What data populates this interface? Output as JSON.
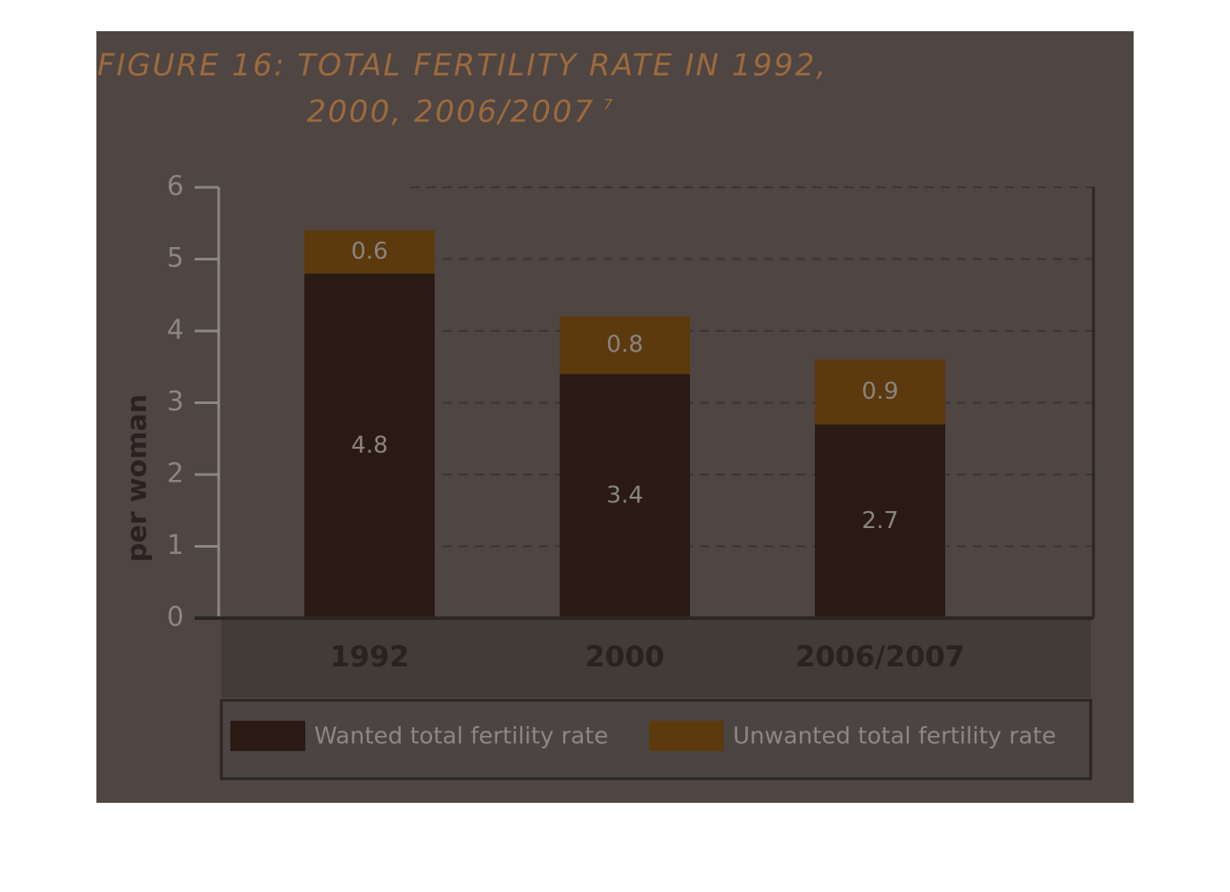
{
  "chart_data": {
    "type": "stacked_bar",
    "title": [
      "FIGURE 16: TOTAL FERTILITY RATE IN 1992,",
      "2000, 2006/2007"
    ],
    "title_footnote": "7",
    "y_label": "per woman",
    "categories": [
      "1992",
      "2000",
      "2006/2007"
    ],
    "series": [
      {
        "name": "Wanted total fertility rate",
        "color": "#2b1a14",
        "values": [
          4.8,
          3.4,
          2.7
        ]
      },
      {
        "name": "Unwanted total fertility rate",
        "color": "#5c3a0e",
        "values": [
          0.6,
          0.8,
          0.9
        ]
      }
    ],
    "ylim": [
      0,
      6
    ],
    "yticks": [
      0,
      1,
      2,
      3,
      4,
      5,
      6
    ],
    "grid": true
  }
}
